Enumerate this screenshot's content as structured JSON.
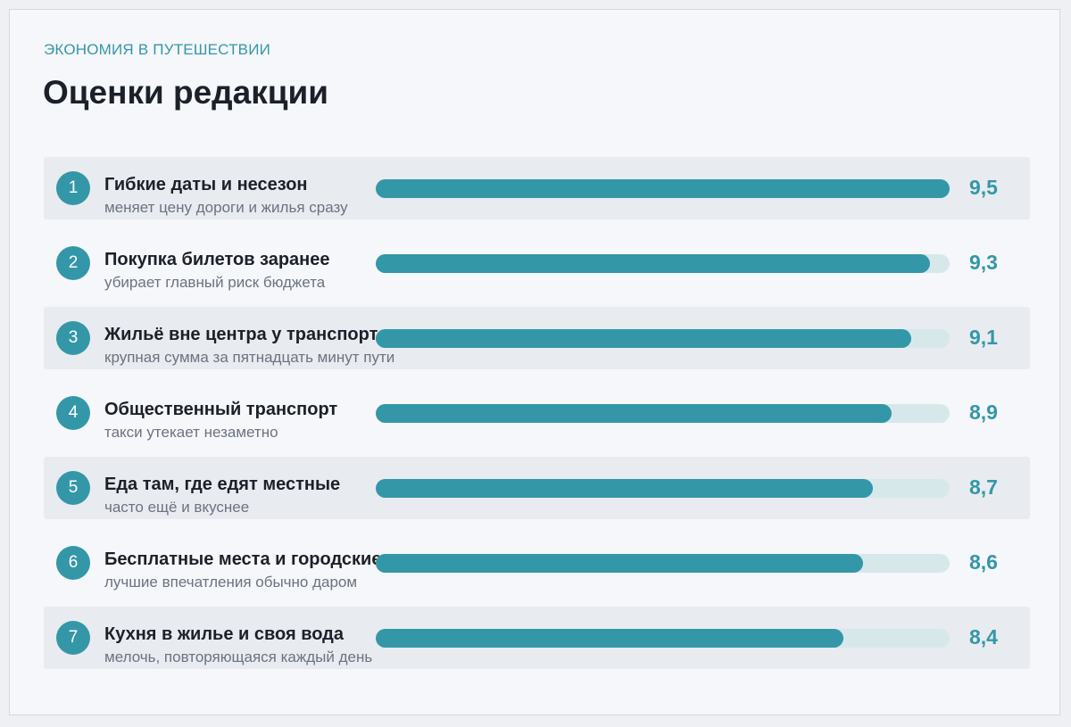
{
  "header": {
    "eyebrow": "ЭКОНОМИЯ В ПУТЕШЕСТВИИ",
    "title": "Оценки редакции"
  },
  "colors": {
    "accent": "#3497a8",
    "track": "#d7e8eb",
    "shaded_row": "#e8ebf0"
  },
  "chart_data": {
    "type": "bar",
    "orientation": "horizontal",
    "title": "Оценки редакции",
    "xlim": [
      0,
      10
    ],
    "grid": false,
    "legend": "none",
    "categories": [
      "Гибкие даты и несезон",
      "Покупка билетов заранее",
      "Жильё вне центра у транспорта",
      "Общественный транспорт",
      "Еда там, где едят местные",
      "Бесплатные места и городские",
      "Кухня в жилье и своя вода"
    ],
    "values": [
      9.5,
      9.3,
      9.1,
      8.9,
      8.7,
      8.6,
      8.4
    ],
    "value_labels": [
      "9,5",
      "9,3",
      "9,1",
      "8,9",
      "8,7",
      "8,6",
      "8,4"
    ],
    "ranks": [
      "1",
      "2",
      "3",
      "4",
      "5",
      "6",
      "7"
    ],
    "notes": [
      "меняет цену дороги и жилья сразу",
      "убирает главный риск бюджета",
      "крупная сумма за пятнадцать минут пути",
      "такси утекает незаметно",
      "часто ещё и вкуснее",
      "лучшие впечатления обычно даром",
      "мелочь, повторяющаяся каждый день"
    ]
  }
}
